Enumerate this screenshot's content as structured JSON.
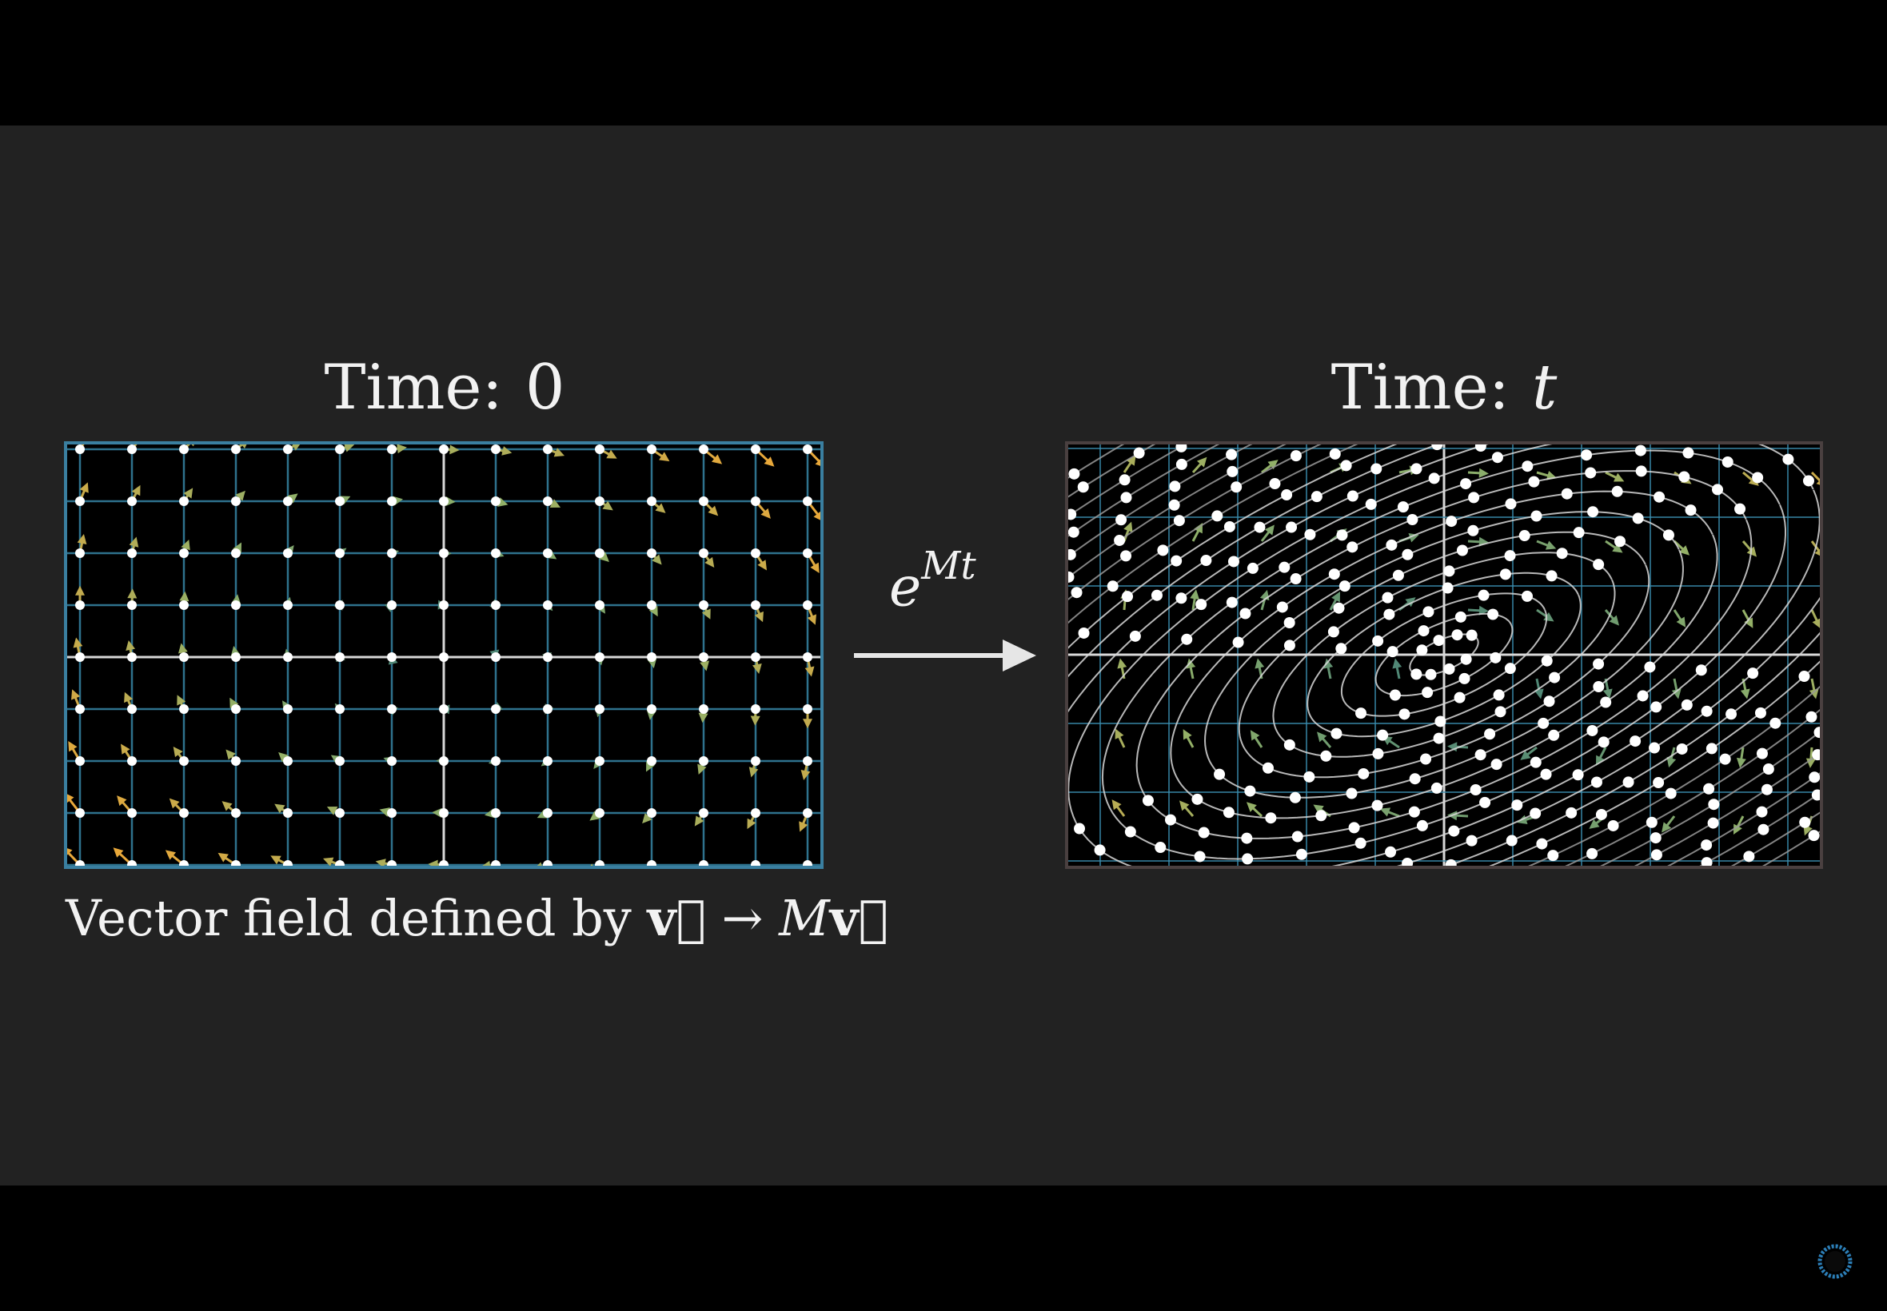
{
  "left_panel": {
    "title_label": "Time:",
    "title_value": "0"
  },
  "right_panel": {
    "title_label": "Time:",
    "title_value": "t"
  },
  "arrow_label": {
    "base": "e",
    "exponent": "Mt"
  },
  "caption": {
    "text": "Vector field defined by",
    "v1": "v⃗",
    "arrow": "→",
    "M": "M",
    "v2": "v⃗"
  },
  "colors": {
    "background": "#222222",
    "letterbox": "#000000",
    "grid_line": "#3a8fb0",
    "axis_line": "#d8d8d8",
    "dot": "#ffffff",
    "field_low": "#3d7a78",
    "field_mid": "#8fb06a",
    "field_high": "#e8a83a"
  },
  "icons": {
    "spinner": "loading-spinner-icon",
    "transform_arrow": "right-arrow-icon"
  }
}
